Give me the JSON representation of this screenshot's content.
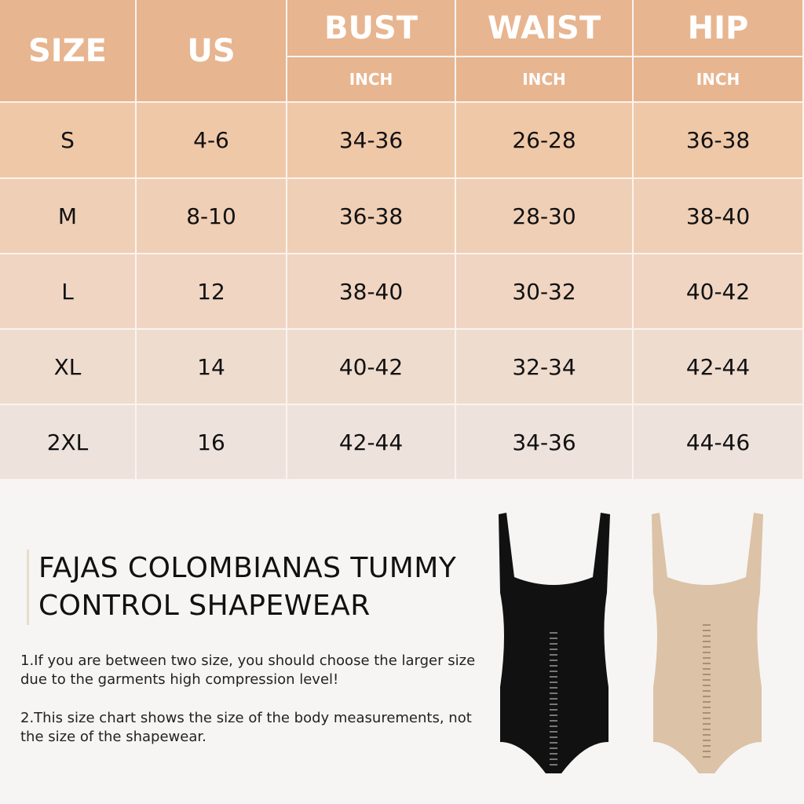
{
  "table": {
    "headers": {
      "size": "SIZE",
      "us": "US",
      "bust": "BUST",
      "waist": "WAIST",
      "hip": "HIP",
      "unit": "INCH"
    },
    "rows": [
      {
        "size": "S",
        "us": "4-6",
        "bust": "34-36",
        "waist": "26-28",
        "hip": "36-38"
      },
      {
        "size": "M",
        "us": "8-10",
        "bust": "36-38",
        "waist": "28-30",
        "hip": "38-40"
      },
      {
        "size": "L",
        "us": "12",
        "bust": "38-40",
        "waist": "30-32",
        "hip": "40-42"
      },
      {
        "size": "XL",
        "us": "14",
        "bust": "40-42",
        "waist": "32-34",
        "hip": "42-44"
      },
      {
        "size": "2XL",
        "us": "16",
        "bust": "42-44",
        "waist": "34-36",
        "hip": "44-46"
      }
    ],
    "colors": {
      "header": "#e7b590",
      "row_top": "#efc8a8",
      "row_bottom": "#eee2dc"
    }
  },
  "product": {
    "title_line1": "FAJAS COLOMBIANAS TUMMY",
    "title_line2": "CONTROL SHAPEWEAR",
    "note1": "1.If you are between two size, you should choose the larger size due to the garments high compression level!",
    "note2": "2.This size chart shows the size of the body measurements, not the size of the shapewear.",
    "garment_colors": [
      "#111111",
      "#dcc2a6"
    ]
  }
}
